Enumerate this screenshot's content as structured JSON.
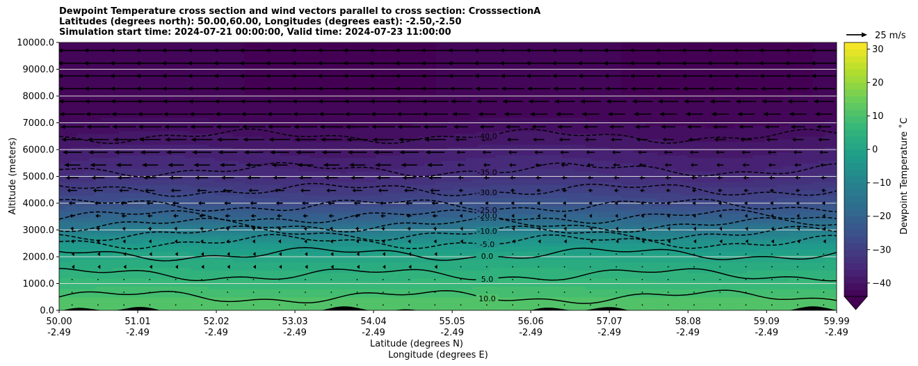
{
  "chart_data": {
    "type": "heatmap",
    "title_lines": [
      "Dewpoint Temperature cross section and wind vectors parallel to cross section: CrosssectionA",
      "Latitudes (degrees north): 50.00,60.00, Longitudes (degrees east): -2.50,-2.50",
      "Simulation start time: 2024-07-21 00:00:00, Valid time: 2024-07-23 11:00:00"
    ],
    "xlabel_lines": [
      "Latitude (degrees N)",
      "Longitude (degrees E)"
    ],
    "ylabel": "Altitude (meters)",
    "x_ticks": [
      {
        "lat": "50.00",
        "lon": "-2.49"
      },
      {
        "lat": "51.01",
        "lon": "-2.49"
      },
      {
        "lat": "52.02",
        "lon": "-2.49"
      },
      {
        "lat": "53.03",
        "lon": "-2.49"
      },
      {
        "lat": "54.04",
        "lon": "-2.49"
      },
      {
        "lat": "55.05",
        "lon": "-2.49"
      },
      {
        "lat": "56.06",
        "lon": "-2.49"
      },
      {
        "lat": "57.07",
        "lon": "-2.49"
      },
      {
        "lat": "58.08",
        "lon": "-2.49"
      },
      {
        "lat": "59.09",
        "lon": "-2.49"
      },
      {
        "lat": "59.99",
        "lon": "-2.49"
      }
    ],
    "y_ticks": [
      "0.0",
      "1000.0",
      "2000.0",
      "3000.0",
      "4000.0",
      "5000.0",
      "6000.0",
      "7000.0",
      "8000.0",
      "9000.0",
      "10000.0"
    ],
    "ylim": [
      0,
      10000
    ],
    "xlim": [
      50.0,
      59.99
    ],
    "grid": "horizontal",
    "colorbar": {
      "label": "Dewpoint Temperature ˚C",
      "ticks": [
        "−40",
        "−30",
        "−20",
        "−10",
        "0",
        "10",
        "20",
        "30"
      ],
      "range": [
        -44,
        32
      ],
      "extend": "min",
      "colormap": "viridis"
    },
    "quiver_key": {
      "label": "25 m/s",
      "speed": 25
    },
    "dewpoint_profile": {
      "altitude_m": [
        0,
        500,
        1000,
        1500,
        2000,
        2500,
        3000,
        3500,
        4000,
        4500,
        5000,
        6000,
        7000,
        8000,
        9000,
        10000
      ],
      "dewpoint_c": [
        12,
        10,
        7,
        4,
        1,
        -4,
        -12,
        -20,
        -26,
        -30,
        -34,
        -38,
        -42,
        -44,
        -44,
        -44
      ]
    },
    "contours": [
      {
        "level": "10.0",
        "style": "solid"
      },
      {
        "level": "5.0",
        "style": "solid"
      },
      {
        "level": "0.0",
        "style": "solid"
      },
      {
        "level": "-5.0",
        "style": "dashed"
      },
      {
        "level": "-10.0",
        "style": "dashed"
      },
      {
        "level": "-15.0",
        "style": "dashed"
      },
      {
        "level": "-20.0",
        "style": "dashed"
      },
      {
        "level": "-25.0",
        "style": "dashed"
      },
      {
        "level": "-30.0",
        "style": "dashed"
      },
      {
        "level": "-35.0",
        "style": "dashed"
      },
      {
        "level": "-40.0",
        "style": "dashed"
      }
    ],
    "wind_profile": {
      "altitude_m": [
        0,
        1000,
        2000,
        3000,
        4000,
        5000,
        6000,
        7000,
        8000,
        9000,
        10000
      ],
      "speed_m_s_westward_west_half": [
        0,
        0.5,
        1,
        3,
        6,
        12,
        18,
        22,
        25,
        26,
        26
      ],
      "speed_m_s_westward_east_half": [
        0,
        0.3,
        0.6,
        1.5,
        3,
        5,
        8,
        14,
        20,
        24,
        24
      ]
    }
  }
}
